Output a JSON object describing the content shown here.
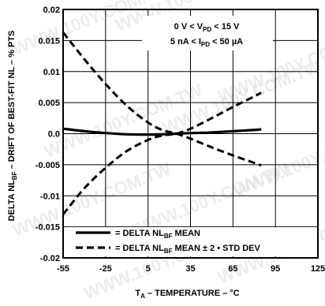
{
  "chart_data": {
    "type": "line",
    "title": "",
    "xlabel": {
      "main": "T",
      "sub": "A",
      "rest": " – TEMPERATURE – °C"
    },
    "ylabel": {
      "pre": "DELTA NL",
      "sub": "BF",
      "post": " – DRIFT OF BEST-FIT NL – % PTS"
    },
    "xlim": [
      -55,
      125
    ],
    "ylim": [
      -0.02,
      0.02
    ],
    "x_ticks": [
      -55,
      -25,
      5,
      35,
      65,
      95,
      125
    ],
    "x_tick_labels": [
      "-55",
      "-25",
      "5",
      "35",
      "65",
      "95",
      "125"
    ],
    "y_ticks": [
      -0.02,
      -0.015,
      -0.01,
      -0.005,
      0.0,
      0.005,
      0.01,
      0.015,
      0.02
    ],
    "y_tick_labels": [
      "-0.02",
      "-0.015",
      "-0.01",
      "-0.005",
      "0.0",
      "0.005",
      "0.01",
      "0.015",
      "0.02"
    ],
    "grid": true,
    "annotations": [
      {
        "parts": [
          {
            "t": "0 V < V"
          },
          {
            "t": "PD",
            "sub": true
          },
          {
            "t": " < 15 V"
          }
        ]
      },
      {
        "parts": [
          {
            "t": "5 nA < I"
          },
          {
            "t": "PD",
            "sub": true
          },
          {
            "t": " < 50 µA"
          }
        ]
      }
    ],
    "legend": {
      "placement": "bottom",
      "entries": [
        {
          "style": "solid",
          "parts": [
            {
              "t": "= DELTA NL"
            },
            {
              "t": "BF",
              "sub": true
            },
            {
              "t": " MEAN"
            }
          ]
        },
        {
          "style": "dashed",
          "parts": [
            {
              "t": "= DELTA NL"
            },
            {
              "t": "BF",
              "sub": true
            },
            {
              "t": " MEAN ± 2 • STD DEV"
            }
          ]
        }
      ]
    },
    "series": [
      {
        "style": "solid",
        "x": [
          -55,
          -40,
          -25,
          -10,
          5,
          15,
          25,
          35,
          50,
          65,
          80,
          85
        ],
        "y": [
          0.0008,
          0.0004,
          0.0001,
          -0.0001,
          -0.00015,
          -0.0001,
          0.0,
          0.0001,
          0.0002,
          0.0004,
          0.0006,
          0.0007
        ]
      },
      {
        "style": "dashed",
        "x": [
          -55,
          -40,
          -25,
          -10,
          5,
          15,
          25,
          35,
          50,
          65,
          80,
          85
        ],
        "y": [
          0.0163,
          0.012,
          0.008,
          0.0045,
          0.0018,
          0.0006,
          0.0,
          -0.0008,
          -0.0022,
          -0.0035,
          -0.0047,
          -0.0051
        ]
      },
      {
        "style": "dashed",
        "x": [
          -55,
          -40,
          -25,
          -10,
          5,
          15,
          25,
          35,
          50,
          65,
          80,
          85
        ],
        "y": [
          -0.013,
          -0.0088,
          -0.0055,
          -0.0028,
          -0.001,
          -0.0003,
          0.0,
          0.0008,
          0.0025,
          0.0043,
          0.006,
          0.0066
        ]
      }
    ],
    "colors": {
      "line": "#000000",
      "grid": "#000000",
      "watermark": "#d6d6d6"
    },
    "watermark_text": "WWW.100Y.COM.TW"
  }
}
